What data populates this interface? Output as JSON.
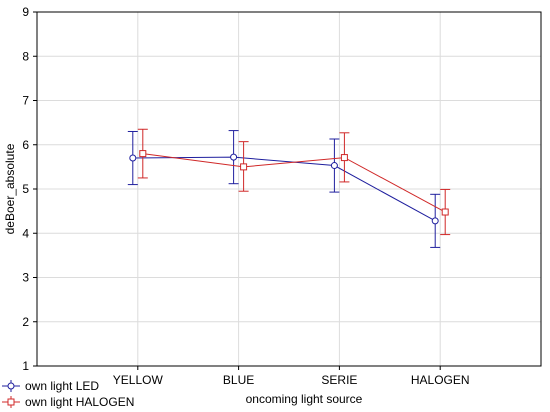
{
  "chart_data": {
    "type": "line",
    "xlabel": "oncoming light source",
    "ylabel": "deBoer_absolute",
    "categories": [
      "YELLOW",
      "BLUE",
      "SERIE",
      "HALOGEN"
    ],
    "ylim": [
      1,
      9
    ],
    "yticks": [
      "1",
      "2",
      "3",
      "4",
      "5",
      "6",
      "7",
      "8",
      "9"
    ],
    "grid": true,
    "legend_position": "bottom-left",
    "series": [
      {
        "name": "own light LED",
        "color": "#1f1f9e",
        "marker": "circle",
        "values": [
          5.7,
          5.72,
          5.53,
          4.28
        ],
        "err_low": [
          5.1,
          5.12,
          4.93,
          3.68
        ],
        "err_high": [
          6.3,
          6.32,
          6.13,
          4.88
        ]
      },
      {
        "name": "own light HALOGEN",
        "color": "#d02828",
        "marker": "square",
        "values": [
          5.8,
          5.5,
          5.71,
          4.48
        ],
        "err_low": [
          5.25,
          4.95,
          5.16,
          3.97
        ],
        "err_high": [
          6.35,
          6.07,
          6.27,
          4.99
        ]
      }
    ]
  }
}
